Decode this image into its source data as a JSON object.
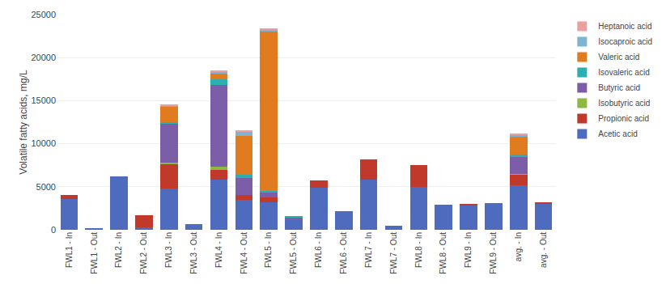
{
  "chart_data": {
    "type": "bar",
    "stacked": true,
    "ylabel": "Volatile fatty acids, mg/L",
    "categories": [
      "FWL1 - In",
      "FWL1 - Out",
      "FWL2 - In",
      "FWL2 - Out",
      "FWL3 - In",
      "FWL3 - Out",
      "FWL4 - In",
      "FWL4 - Out",
      "FWL5 - In",
      "FWL5 - Out",
      "FWL6 - In",
      "FWL6 - Out",
      "FWL7 - In",
      "FWL7 - Out",
      "FWL8 - In",
      "FWL8 - Out",
      "FWL9 - In",
      "FWL9 - Out",
      "avg. - In",
      "avg. - Out"
    ],
    "series": [
      {
        "name": "Acetic acid",
        "color": "#4f6bbd",
        "values": [
          3600,
          150,
          6200,
          300,
          4800,
          650,
          5800,
          3500,
          3200,
          1100,
          4900,
          2200,
          5800,
          500,
          5000,
          2900,
          2800,
          3100,
          5200,
          3000
        ]
      },
      {
        "name": "Propionic acid",
        "color": "#c0392b",
        "values": [
          400,
          0,
          0,
          1400,
          2800,
          0,
          1200,
          500,
          600,
          0,
          800,
          0,
          2400,
          0,
          2500,
          0,
          200,
          0,
          1200,
          200
        ]
      },
      {
        "name": "Isobutyric acid",
        "color": "#8db843",
        "values": [
          0,
          0,
          0,
          0,
          200,
          0,
          300,
          0,
          0,
          0,
          0,
          0,
          0,
          0,
          0,
          0,
          0,
          0,
          100,
          0
        ]
      },
      {
        "name": "Butyric acid",
        "color": "#7b5ea7",
        "values": [
          0,
          0,
          0,
          0,
          4500,
          0,
          9500,
          2000,
          500,
          300,
          0,
          0,
          0,
          0,
          0,
          0,
          0,
          0,
          2000,
          0
        ]
      },
      {
        "name": "Isovaleric acid",
        "color": "#2ab0b0",
        "values": [
          0,
          0,
          0,
          0,
          200,
          0,
          700,
          400,
          200,
          200,
          0,
          0,
          0,
          0,
          0,
          0,
          0,
          0,
          200,
          0
        ]
      },
      {
        "name": "Valeric acid",
        "color": "#e07b20",
        "values": [
          0,
          0,
          0,
          0,
          1800,
          0,
          600,
          4500,
          18500,
          0,
          0,
          0,
          0,
          0,
          0,
          0,
          0,
          0,
          2200,
          0
        ]
      },
      {
        "name": "Isocaproic acid",
        "color": "#7fb3d3",
        "values": [
          0,
          0,
          0,
          0,
          100,
          0,
          200,
          500,
          300,
          0,
          0,
          0,
          0,
          0,
          0,
          0,
          0,
          0,
          100,
          0
        ]
      },
      {
        "name": "Heptanoic acid",
        "color": "#e8a0a0",
        "values": [
          0,
          0,
          0,
          0,
          200,
          0,
          200,
          150,
          100,
          0,
          0,
          0,
          0,
          0,
          0,
          0,
          0,
          0,
          100,
          0
        ]
      }
    ],
    "ylim": [
      0,
      25000
    ],
    "yticks": [
      0,
      5000,
      10000,
      15000,
      20000,
      25000
    ],
    "grid": true,
    "legend": "upper right"
  }
}
